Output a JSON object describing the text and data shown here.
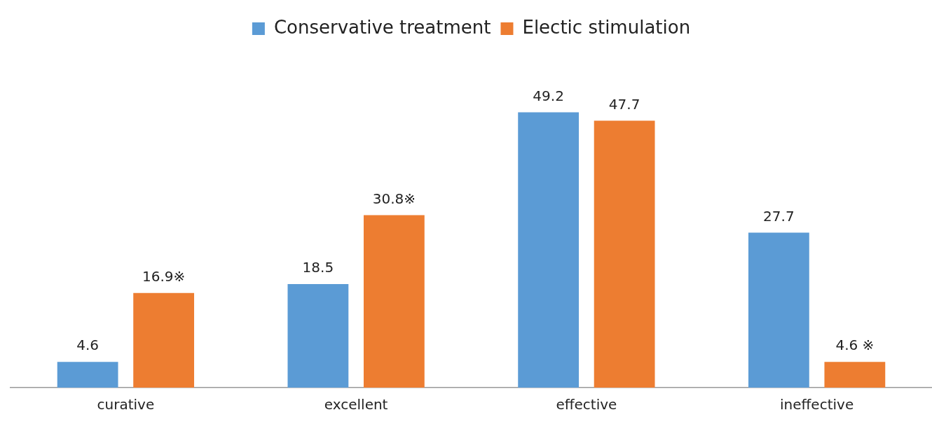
{
  "chart_data": {
    "type": "bar",
    "categories": [
      "curative",
      "excellent",
      "effective",
      "ineffective"
    ],
    "series": [
      {
        "name": "Conservative treatment",
        "color": "#5b9bd5",
        "values": [
          4.6,
          18.5,
          49.2,
          27.7
        ],
        "value_labels": [
          "4.6",
          "18.5",
          "49.2",
          "27.7"
        ]
      },
      {
        "name": "Electic stimulation",
        "color": "#ed7d31",
        "values": [
          16.9,
          30.8,
          47.7,
          4.6
        ],
        "value_labels": [
          "16.9※",
          "30.8※",
          "47.7",
          "4.6 ※"
        ]
      }
    ],
    "legend": "top",
    "grid": false,
    "tick_labels": "x"
  }
}
